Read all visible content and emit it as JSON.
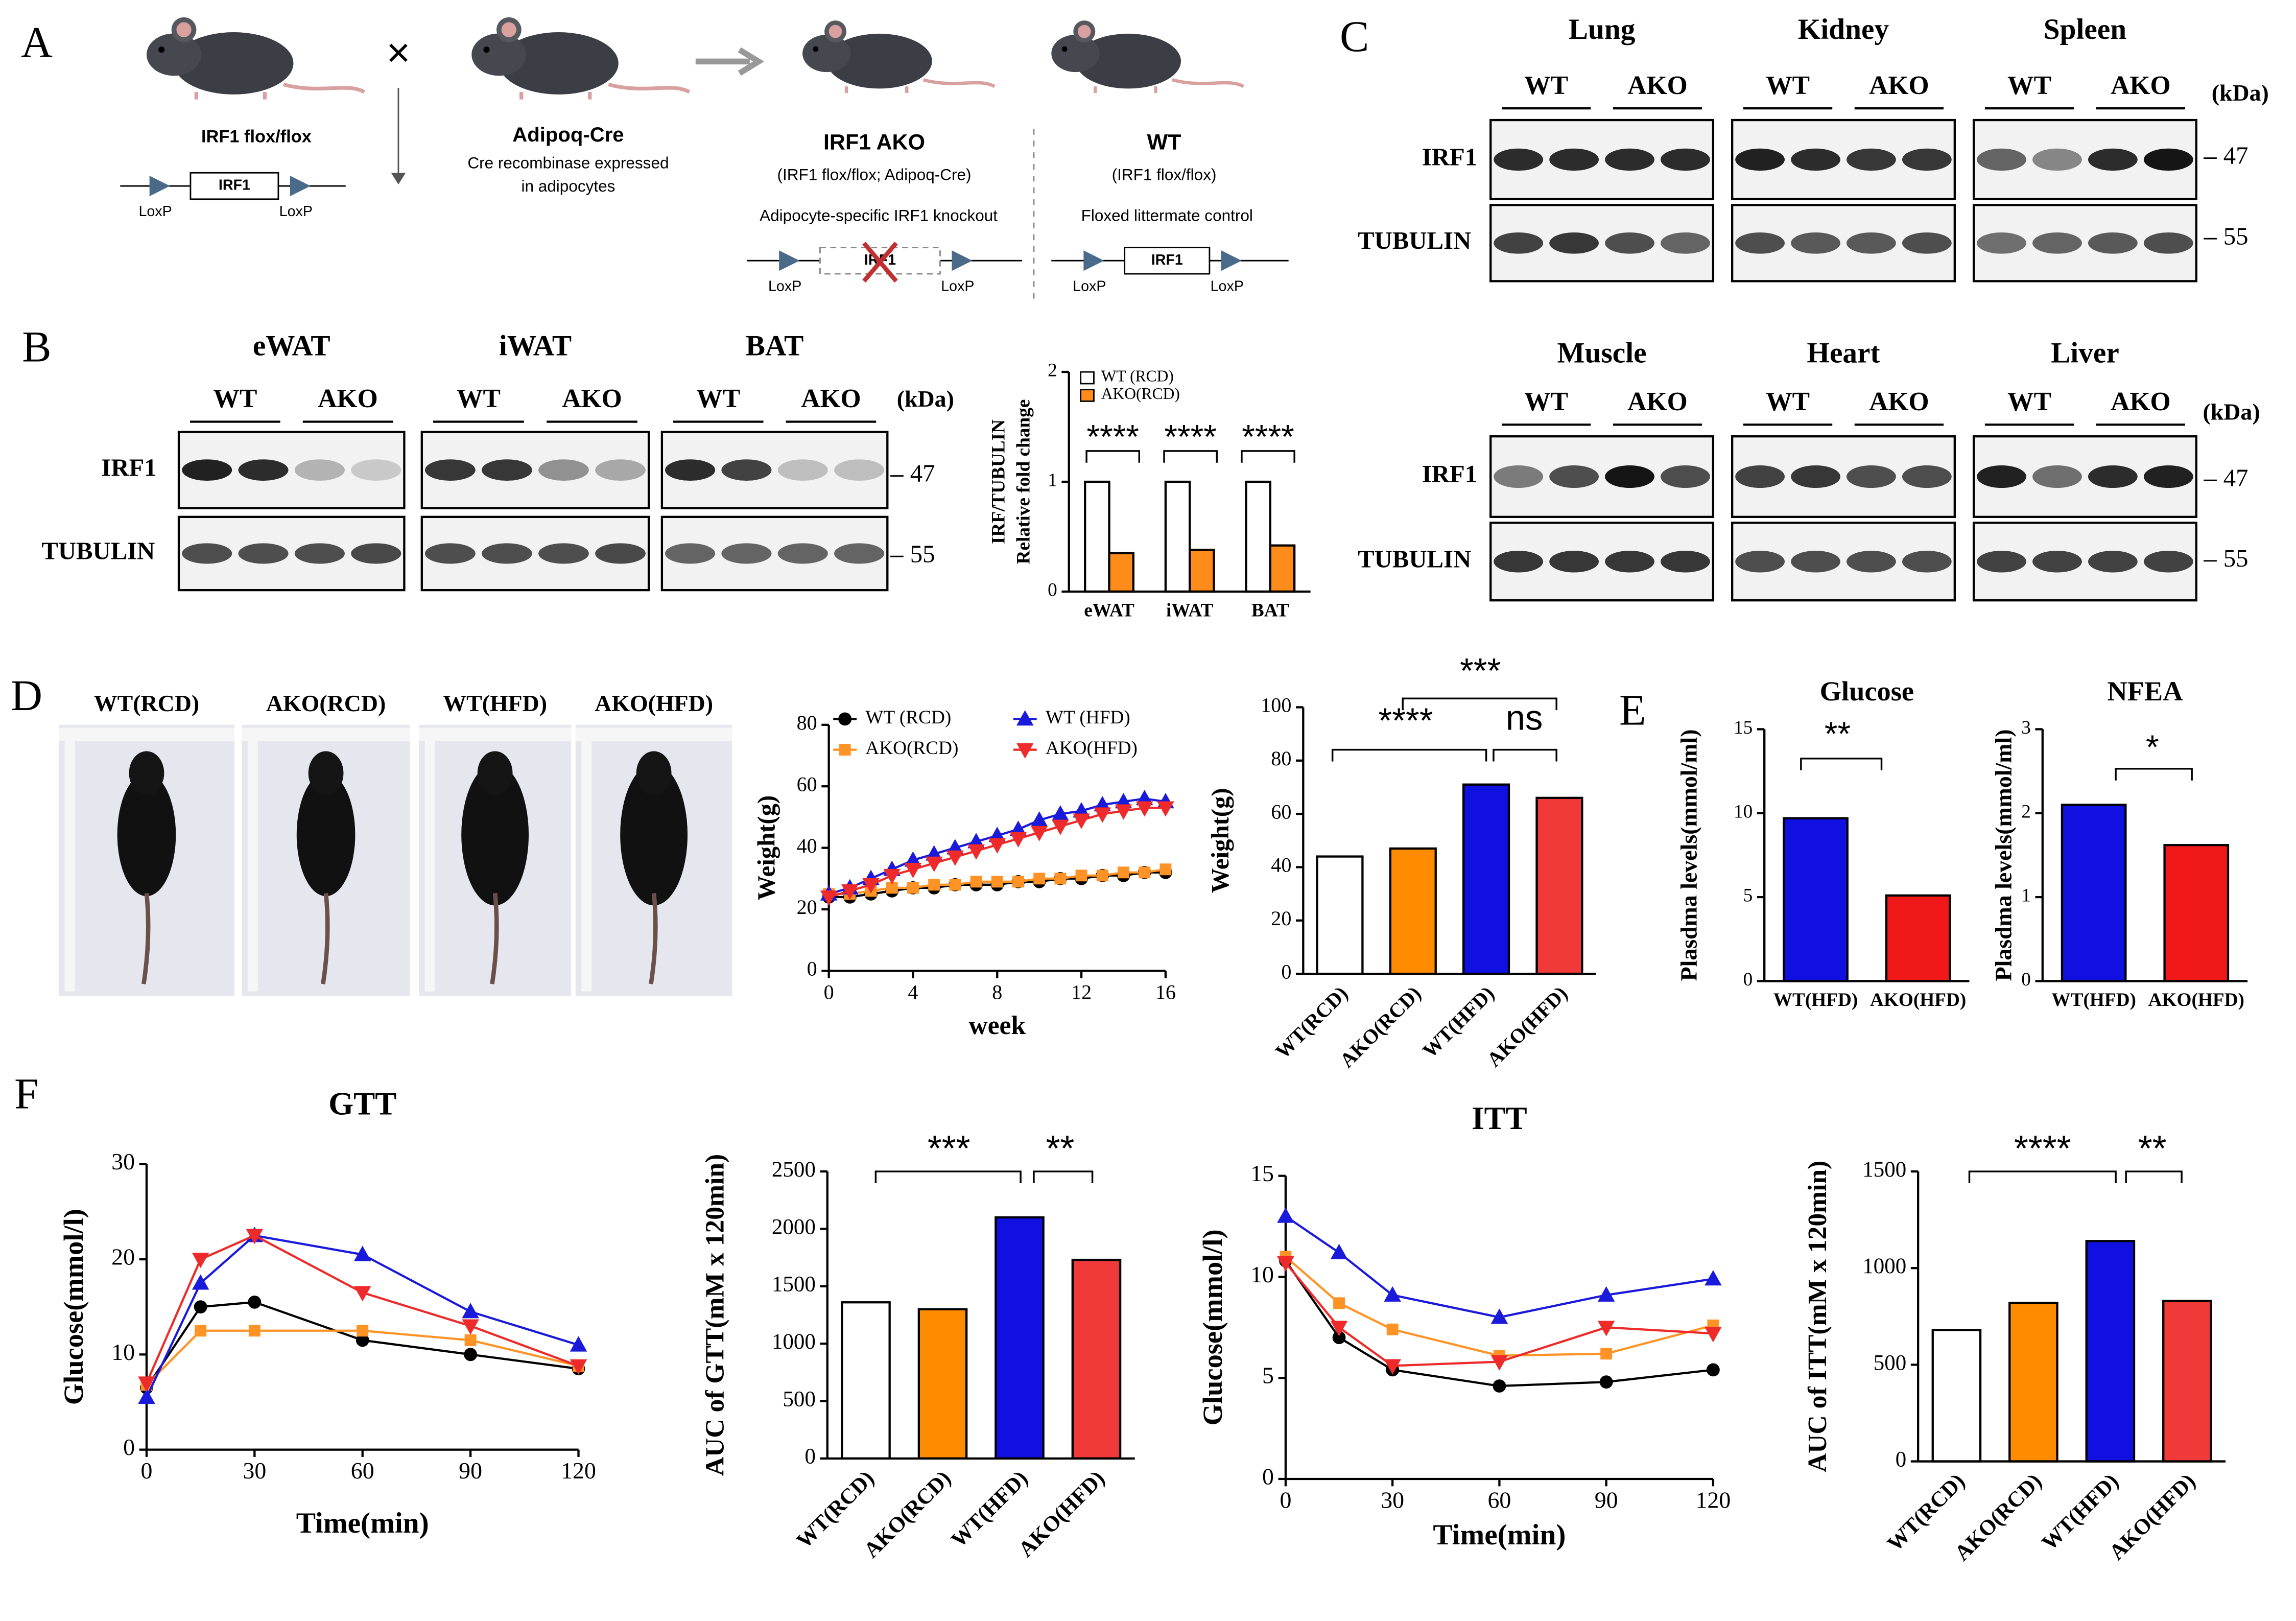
{
  "panels": [
    "A",
    "B",
    "C",
    "D",
    "E",
    "F"
  ],
  "scheme": {
    "parent1": {
      "genotype": "IRF1 flox/flox",
      "gene": "IRF1",
      "loxp": "LoxP"
    },
    "cross": "×",
    "parent2": {
      "name": "Adipoq-Cre",
      "description": [
        "Cre recombinase expressed",
        "in adipocytes"
      ]
    },
    "ako": {
      "name": "IRF1 AKO",
      "genotype": "(IRF1 flox/flox; Adipoq-Cre)",
      "description": "Adipocyte-specific IRF1 knockout",
      "gene": "IRF1"
    },
    "wt": {
      "name": "WT",
      "genotype": "(IRF1 flox/flox)",
      "description": "Floxed littermate control",
      "gene": "IRF1"
    }
  },
  "blots_b": {
    "tissues": [
      "eWAT",
      "iWAT",
      "BAT"
    ],
    "groups": [
      "WT",
      "AKO"
    ],
    "rows": [
      "IRF1",
      "TUBULIN"
    ],
    "kda": "(kDa)",
    "markers": [
      "47",
      "55"
    ]
  },
  "blots_c": {
    "tissues": [
      "Lung",
      "Kidney",
      "Spleen",
      "Muscle",
      "Heart",
      "Liver"
    ],
    "groups": [
      "WT",
      "AKO"
    ],
    "rows": [
      "IRF1",
      "TUBULIN"
    ],
    "kda": "(kDa)",
    "markers": [
      "47",
      "55"
    ]
  },
  "photos": [
    "WT(RCD)",
    "AKO(RCD)",
    "WT(HFD)",
    "AKO(HFD)"
  ],
  "chart_data": [
    {
      "type": "bar",
      "y_label": [
        "IRF/TUBULIN",
        "Relative fold change"
      ],
      "categories": [
        "eWAT",
        "iWAT",
        "BAT"
      ],
      "series": [
        {
          "name": "WT (RCD)",
          "color": "#ffffff",
          "values": [
            1,
            1,
            1
          ]
        },
        {
          "name": "AKO(RCD)",
          "color": "#ff8c1a",
          "values": [
            0.35,
            0.38,
            0.42
          ]
        }
      ],
      "ylim": [
        0,
        2
      ],
      "yticks": [
        0,
        1,
        2
      ],
      "annotations": [
        "****",
        "****",
        "****"
      ]
    },
    {
      "type": "line",
      "x_label": "week",
      "y_label": "Weight(g)",
      "x": [
        0,
        1,
        2,
        3,
        4,
        5,
        6,
        7,
        8,
        9,
        10,
        11,
        12,
        13,
        14,
        15,
        16
      ],
      "series": [
        {
          "name": "WT (RCD)",
          "color": "#000000",
          "marker": "circle",
          "values": [
            24,
            24,
            25,
            26,
            27,
            27,
            28,
            28,
            28,
            29,
            29,
            30,
            30,
            31,
            31,
            32,
            32
          ]
        },
        {
          "name": "AKO(RCD)",
          "color": "#ff9326",
          "marker": "square",
          "values": [
            25,
            25,
            26,
            27,
            27,
            28,
            28,
            29,
            29,
            29,
            30,
            30,
            31,
            31,
            32,
            32,
            33
          ]
        },
        {
          "name": "WT (HFD)",
          "color": "#1a1adb",
          "marker": "triangle-up",
          "values": [
            25,
            27,
            30,
            33,
            36,
            38,
            40,
            42,
            44,
            46,
            49,
            51,
            52,
            54,
            55,
            56,
            55
          ]
        },
        {
          "name": "AKO(HFD)",
          "color": "#ee2a2a",
          "marker": "triangle-down",
          "values": [
            24,
            26,
            28,
            31,
            33,
            35,
            37,
            39,
            41,
            43,
            45,
            47,
            49,
            51,
            52,
            53,
            53
          ]
        }
      ],
      "xlim": [
        0,
        16
      ],
      "xticks": [
        0,
        4,
        8,
        12,
        16
      ],
      "ylim": [
        0,
        80
      ],
      "yticks": [
        0,
        20,
        40,
        60,
        80
      ]
    },
    {
      "type": "bar",
      "y_label": "Weight(g)",
      "categories": [
        "WT(RCD)",
        "AKO(RCD)",
        "WT(HFD)",
        "AKO(HFD)"
      ],
      "values": [
        44,
        47,
        71,
        66
      ],
      "colors": [
        "#ffffff",
        "#ff8c00",
        "#1010e0",
        "#f03a3a"
      ],
      "ylim": [
        0,
        100
      ],
      "yticks": [
        0,
        20,
        40,
        60,
        80,
        100
      ],
      "annotations": [
        "****",
        "***",
        "ns"
      ]
    },
    {
      "type": "bar",
      "title": "Glucose",
      "y_label": "Plasdma levels(mmol/ml)",
      "categories": [
        "WT(HFD)",
        "AKO(HFD)"
      ],
      "values": [
        9.7,
        5.1
      ],
      "colors": [
        "#1010e0",
        "#f01818"
      ],
      "ylim": [
        0,
        15
      ],
      "yticks": [
        0,
        5,
        10,
        15
      ],
      "annotations": [
        "**"
      ]
    },
    {
      "type": "bar",
      "title": "NFEA",
      "y_label": "Plasdma levels(mmol/ml)",
      "categories": [
        "WT(HFD)",
        "AKO(HFD)"
      ],
      "values": [
        2.1,
        1.62
      ],
      "colors": [
        "#1010e0",
        "#f01818"
      ],
      "ylim": [
        0,
        3
      ],
      "yticks": [
        0,
        1,
        2,
        3
      ],
      "annotations": [
        "*"
      ]
    },
    {
      "type": "line",
      "title": "GTT",
      "x_label": "Time(min)",
      "y_label": "Glucose(mmol/l)",
      "x": [
        0,
        15,
        30,
        60,
        90,
        120
      ],
      "series": [
        {
          "color": "#000000",
          "marker": "circle",
          "values": [
            6.5,
            15,
            15.5,
            11.5,
            10,
            8.5
          ]
        },
        {
          "color": "#ff9326",
          "marker": "square",
          "values": [
            6.8,
            12.5,
            12.5,
            12.5,
            11.5,
            8.8
          ]
        },
        {
          "color": "#1a1adb",
          "marker": "triangle-up",
          "values": [
            5.5,
            17.5,
            22.5,
            20.5,
            14.5,
            11
          ]
        },
        {
          "color": "#ee2a2a",
          "marker": "triangle-down",
          "values": [
            7,
            20,
            22.5,
            16.5,
            13,
            8.8
          ]
        }
      ],
      "xlim": [
        0,
        120
      ],
      "xticks": [
        0,
        30,
        60,
        90,
        120
      ],
      "ylim": [
        0,
        30
      ],
      "yticks": [
        0,
        10,
        20,
        30
      ]
    },
    {
      "type": "bar",
      "y_label": "AUC of GTT(mM x 120min)",
      "categories": [
        "WT(RCD)",
        "AKO(RCD)",
        "WT(HFD)",
        "AKO(HFD)"
      ],
      "values": [
        1360,
        1300,
        2100,
        1730
      ],
      "colors": [
        "#ffffff",
        "#ff8c00",
        "#1010e0",
        "#f03a3a"
      ],
      "ylim": [
        0,
        2500
      ],
      "yticks": [
        0,
        500,
        1000,
        1500,
        2000,
        2500
      ],
      "annotations": [
        "***",
        "**"
      ]
    },
    {
      "type": "line",
      "title": "ITT",
      "x_label": "Time(min)",
      "y_label": "Glucose(mmol/l)",
      "x": [
        0,
        15,
        30,
        60,
        90,
        120
      ],
      "series": [
        {
          "color": "#000000",
          "marker": "circle",
          "values": [
            10.8,
            7,
            5.4,
            4.6,
            4.8,
            5.4
          ]
        },
        {
          "color": "#ff9326",
          "marker": "square",
          "values": [
            11,
            8.7,
            7.4,
            6.1,
            6.2,
            7.6
          ]
        },
        {
          "color": "#1a1adb",
          "marker": "triangle-up",
          "values": [
            13,
            11.2,
            9.1,
            8,
            9.1,
            9.9
          ]
        },
        {
          "color": "#ee2a2a",
          "marker": "triangle-down",
          "values": [
            10.7,
            7.5,
            5.6,
            5.8,
            7.5,
            7.2
          ]
        }
      ],
      "xlim": [
        0,
        120
      ],
      "xticks": [
        0,
        30,
        60,
        90,
        120
      ],
      "ylim": [
        0,
        15
      ],
      "yticks": [
        0,
        5,
        10,
        15
      ]
    },
    {
      "type": "bar",
      "y_label": "AUC of ITT(mM x 120min)",
      "categories": [
        "WT(RCD)",
        "AKO(RCD)",
        "WT(HFD)",
        "AKO(HFD)"
      ],
      "values": [
        680,
        820,
        1140,
        830
      ],
      "colors": [
        "#ffffff",
        "#ff8c00",
        "#1010e0",
        "#f03a3a"
      ],
      "ylim": [
        0,
        1500
      ],
      "yticks": [
        0,
        500,
        1000,
        1500
      ],
      "annotations": [
        "****",
        "**"
      ]
    }
  ]
}
